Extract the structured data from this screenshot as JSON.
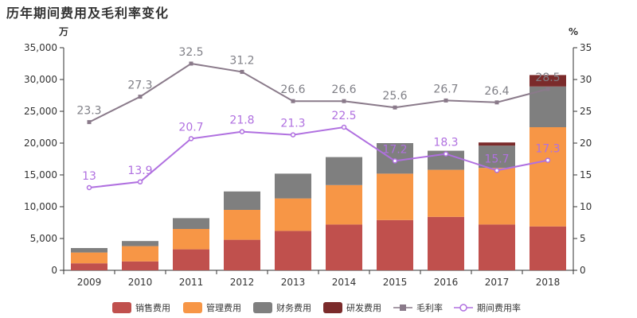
{
  "chart_data": {
    "type": "bar",
    "title": "历年期间费用及毛利率变化",
    "left_unit": "万",
    "right_unit": "%",
    "categories": [
      "2009",
      "2010",
      "2011",
      "2012",
      "2013",
      "2014",
      "2015",
      "2016",
      "2017",
      "2018"
    ],
    "y_left": {
      "min": 0,
      "max": 35000,
      "ticks": [
        0,
        5000,
        10000,
        15000,
        20000,
        25000,
        30000,
        35000
      ],
      "tick_labels": [
        "0",
        "5,000",
        "10,000",
        "15,000",
        "20,000",
        "25,000",
        "30,000",
        "35,000"
      ]
    },
    "y_right": {
      "min": 0,
      "max": 35,
      "ticks": [
        0,
        5,
        10,
        15,
        20,
        25,
        30,
        35
      ],
      "tick_labels": [
        "0",
        "5",
        "10",
        "15",
        "20",
        "25",
        "30",
        "35"
      ]
    },
    "grid": false,
    "legend_position": "bottom",
    "stacked_series": [
      {
        "name": "销售费用",
        "color": "#c0504d",
        "values": [
          1100,
          1400,
          3300,
          4800,
          6200,
          7200,
          7900,
          8400,
          7200,
          6900
        ]
      },
      {
        "name": "管理费用",
        "color": "#f79646",
        "values": [
          1700,
          2400,
          3200,
          4700,
          5100,
          6200,
          7300,
          7400,
          8900,
          15600
        ]
      },
      {
        "name": "财务费用",
        "color": "#7f7f7f",
        "values": [
          700,
          800,
          1700,
          2900,
          3900,
          4400,
          4800,
          3000,
          3500,
          6400
        ]
      },
      {
        "name": "研发费用",
        "color": "#7b2b2b",
        "values": [
          0,
          0,
          0,
          0,
          0,
          0,
          0,
          0,
          500,
          1800
        ]
      }
    ],
    "line_series": [
      {
        "name": "毛利率",
        "color": "#8a7a8a",
        "marker": "square",
        "values": [
          23.3,
          27.3,
          32.5,
          31.2,
          26.6,
          26.6,
          25.6,
          26.7,
          26.4,
          28.5
        ],
        "labels": [
          "23.3",
          "27.3",
          "32.5",
          "31.2",
          "26.6",
          "26.6",
          "25.6",
          "26.7",
          "26.4",
          "28.5"
        ]
      },
      {
        "name": "期间费用率",
        "color": "#b070e0",
        "marker": "circle",
        "values": [
          13,
          13.9,
          20.7,
          21.8,
          21.3,
          22.5,
          17.2,
          18.3,
          15.7,
          17.3
        ],
        "labels": [
          "13",
          "13.9",
          "20.7",
          "21.8",
          "21.3",
          "22.5",
          "17.2",
          "18.3",
          "15.7",
          "17.3"
        ]
      }
    ]
  }
}
